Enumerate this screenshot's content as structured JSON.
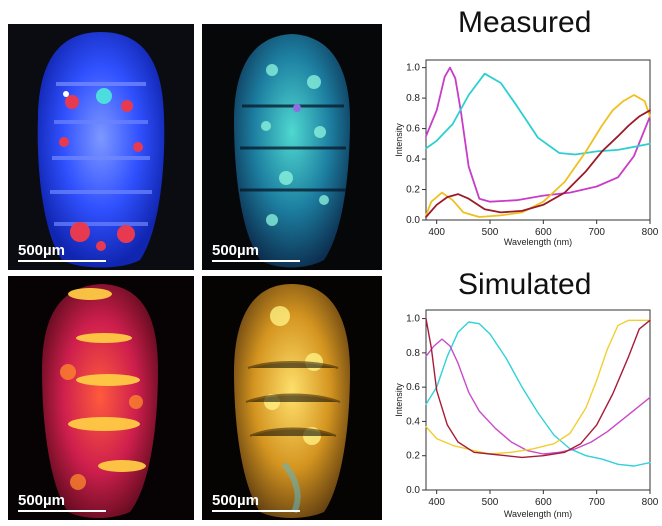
{
  "panels": [
    {
      "id": "blue",
      "scale_label": "500µm",
      "palette": [
        "#2035ff",
        "#5f7bff",
        "#e1314c",
        "#48e0e0"
      ]
    },
    {
      "id": "cyan",
      "scale_label": "500µm",
      "palette": [
        "#0c3558",
        "#1f8fb8",
        "#74f0d2",
        "#8a77d8"
      ]
    },
    {
      "id": "red",
      "scale_label": "500µm",
      "palette": [
        "#6a0b20",
        "#db2452",
        "#ff8a2b",
        "#ffd24b"
      ]
    },
    {
      "id": "gold",
      "scale_label": "500µm",
      "palette": [
        "#5b3a10",
        "#c88117",
        "#f2b23a",
        "#fff07a"
      ]
    }
  ],
  "measured": {
    "title": "Measured",
    "chart_data": {
      "type": "line",
      "xlabel": "Wavelength (nm)",
      "ylabel": "Intensity",
      "xlim": [
        380,
        800
      ],
      "ylim": [
        0,
        1.05
      ],
      "x_ticks": [
        400,
        500,
        600,
        700,
        800
      ],
      "y_ticks": [
        0.0,
        0.2,
        0.4,
        0.6,
        0.8,
        1.0
      ],
      "series": [
        {
          "color": "#c83cc8",
          "x": [
            380,
            400,
            415,
            425,
            435,
            445,
            460,
            480,
            500,
            550,
            600,
            650,
            700,
            740,
            770,
            800
          ],
          "y": [
            0.55,
            0.72,
            0.94,
            1.0,
            0.93,
            0.72,
            0.35,
            0.14,
            0.12,
            0.13,
            0.16,
            0.18,
            0.22,
            0.28,
            0.42,
            0.68
          ]
        },
        {
          "color": "#2ccfd0",
          "x": [
            380,
            400,
            430,
            460,
            490,
            520,
            550,
            590,
            630,
            660,
            700,
            740,
            770,
            800
          ],
          "y": [
            0.47,
            0.52,
            0.63,
            0.82,
            0.96,
            0.9,
            0.75,
            0.54,
            0.44,
            0.43,
            0.45,
            0.46,
            0.48,
            0.5
          ]
        },
        {
          "color": "#f0c020",
          "x": [
            380,
            390,
            410,
            430,
            450,
            480,
            520,
            560,
            600,
            640,
            680,
            710,
            730,
            750,
            770,
            790,
            800
          ],
          "y": [
            0.03,
            0.12,
            0.18,
            0.13,
            0.05,
            0.02,
            0.03,
            0.05,
            0.12,
            0.25,
            0.45,
            0.62,
            0.72,
            0.78,
            0.82,
            0.78,
            0.68
          ]
        },
        {
          "color": "#9b1a2a",
          "x": [
            380,
            400,
            420,
            440,
            460,
            490,
            520,
            560,
            600,
            640,
            680,
            710,
            740,
            760,
            780,
            800
          ],
          "y": [
            0.02,
            0.1,
            0.15,
            0.17,
            0.14,
            0.07,
            0.05,
            0.06,
            0.1,
            0.18,
            0.32,
            0.45,
            0.55,
            0.62,
            0.68,
            0.72
          ]
        }
      ]
    }
  },
  "simulated": {
    "title": "Simulated",
    "chart_data": {
      "type": "line",
      "xlabel": "Wavelength (nm)",
      "ylabel": "Intensity",
      "xlim": [
        380,
        800
      ],
      "ylim": [
        0,
        1.05
      ],
      "x_ticks": [
        400,
        500,
        600,
        700,
        800
      ],
      "y_ticks": [
        0.0,
        0.2,
        0.4,
        0.6,
        0.8,
        1.0
      ],
      "series": [
        {
          "color": "#30d2d8",
          "x": [
            380,
            400,
            420,
            440,
            460,
            480,
            500,
            530,
            560,
            590,
            620,
            650,
            680,
            710,
            740,
            770,
            800
          ],
          "y": [
            0.5,
            0.6,
            0.78,
            0.92,
            0.98,
            0.97,
            0.91,
            0.77,
            0.6,
            0.45,
            0.32,
            0.24,
            0.2,
            0.18,
            0.15,
            0.14,
            0.16
          ]
        },
        {
          "color": "#c84bc8",
          "x": [
            380,
            395,
            410,
            425,
            440,
            460,
            480,
            510,
            540,
            570,
            600,
            630,
            660,
            690,
            720,
            760,
            800
          ],
          "y": [
            0.78,
            0.84,
            0.88,
            0.84,
            0.74,
            0.57,
            0.46,
            0.36,
            0.28,
            0.23,
            0.21,
            0.22,
            0.24,
            0.28,
            0.34,
            0.44,
            0.54
          ]
        },
        {
          "color": "#f0cf30",
          "x": [
            380,
            400,
            430,
            470,
            500,
            540,
            580,
            620,
            650,
            680,
            700,
            720,
            740,
            760,
            800
          ],
          "y": [
            0.37,
            0.3,
            0.26,
            0.23,
            0.21,
            0.22,
            0.24,
            0.27,
            0.33,
            0.48,
            0.64,
            0.82,
            0.96,
            0.99,
            0.99
          ]
        },
        {
          "color": "#a61c38",
          "x": [
            380,
            390,
            400,
            420,
            440,
            470,
            500,
            530,
            560,
            600,
            640,
            670,
            700,
            730,
            760,
            780,
            800
          ],
          "y": [
            1.0,
            0.83,
            0.58,
            0.38,
            0.28,
            0.22,
            0.21,
            0.2,
            0.19,
            0.2,
            0.22,
            0.27,
            0.38,
            0.56,
            0.78,
            0.94,
            0.99
          ]
        }
      ]
    }
  }
}
